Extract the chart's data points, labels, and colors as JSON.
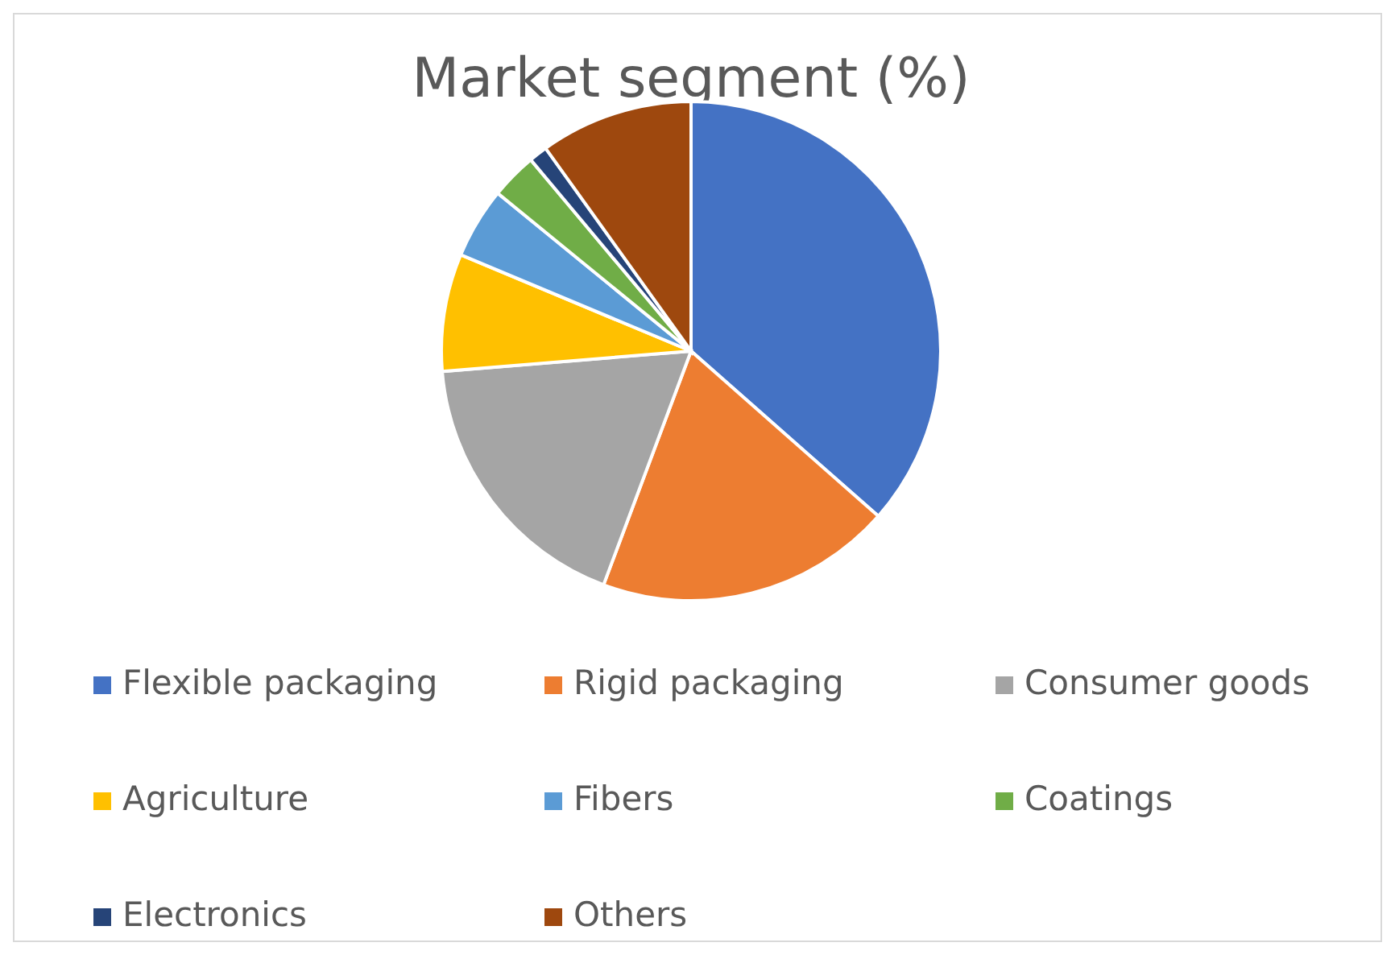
{
  "chart_data": {
    "type": "pie",
    "title": "Market segment (%)",
    "categories": [
      "Flexible packaging",
      "Rigid packaging",
      "Consumer goods",
      "Agriculture",
      "Fibers",
      "Coatings",
      "Electronics",
      "Others"
    ],
    "values": [
      36.5,
      19.2,
      18,
      7.6,
      4.6,
      3,
      1.2,
      9.9
    ],
    "colors": [
      "#4472c4",
      "#ed7d31",
      "#a5a5a5",
      "#ffc000",
      "#5b9bd5",
      "#70ad47",
      "#264478",
      "#9e480e"
    ],
    "legend": "bottom"
  }
}
